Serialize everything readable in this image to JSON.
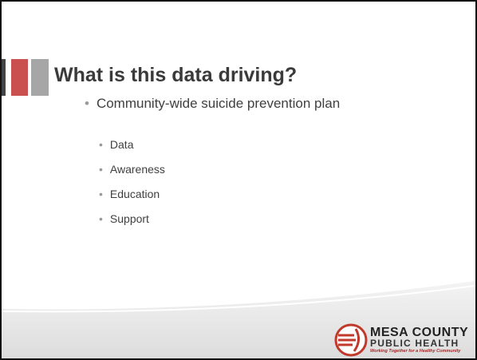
{
  "slide": {
    "title": "What is this data driving?",
    "bullets": [
      {
        "text": "Community-wide suicide prevention plan",
        "children": [
          "Data",
          "Awareness",
          "Education",
          "Support"
        ]
      }
    ],
    "logo": {
      "line1": "MESA COUNTY",
      "line2": "PUBLIC HEALTH",
      "tagline": "Working Together for a Healthy Community"
    }
  }
}
